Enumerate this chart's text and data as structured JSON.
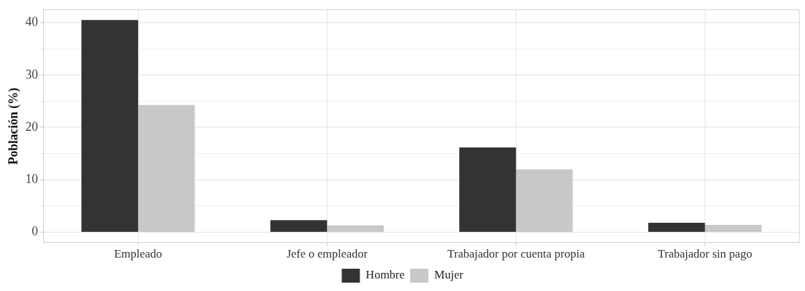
{
  "chart_data": {
    "type": "bar",
    "ylabel": "Población (%)",
    "categories": [
      "Empleado",
      "Jefe o empleador",
      "Trabajador por cuenta propia",
      "Trabajador sin pago"
    ],
    "series": [
      {
        "name": "Hombre",
        "color": "#333333",
        "values": [
          40.5,
          2.3,
          16.2,
          1.8
        ]
      },
      {
        "name": "Mujer",
        "color": "#c8c8c8",
        "values": [
          24.3,
          1.3,
          12.0,
          1.4
        ]
      }
    ],
    "ylim": [
      -2,
      42.5
    ],
    "yticks": [
      0,
      {
        "value": 5,
        "label": null
      },
      10,
      {
        "value": 15,
        "label": null
      },
      20,
      {
        "value": 25,
        "label": null
      },
      30,
      {
        "value": 35,
        "label": null
      },
      40
    ],
    "grid": true,
    "legend": "bottom"
  }
}
